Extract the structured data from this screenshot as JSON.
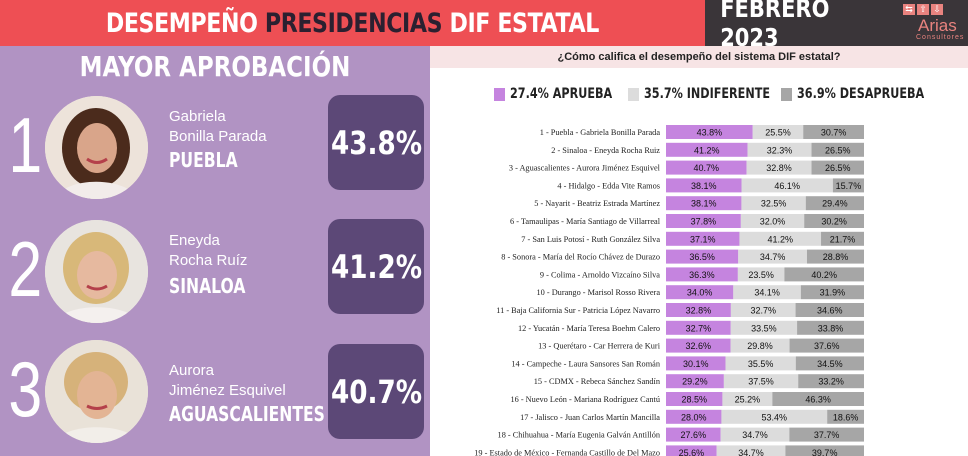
{
  "header": {
    "title_part1": "DESEMPEÑO",
    "title_part2": "PRESIDENCIAS",
    "title_part3": "DIF ESTATAL",
    "date": "FEBRERO 2023",
    "logo_name": "Arias",
    "logo_sub": "Consultores"
  },
  "colors": {
    "header_red": "#ee4f54",
    "header_dark": "#3a3539",
    "panel_purple": "#b193c3",
    "box_purple": "#5c4877",
    "aprueba": "#c584df",
    "indiferente": "#dcdcdc",
    "desaprueba": "#a6a6a6"
  },
  "left_panel": {
    "title": "MAYOR APROBACIÓN",
    "top3": [
      {
        "rank": "1",
        "name_line1": "Gabriela",
        "name_line2": "Bonilla Parada",
        "state": "PUEBLA",
        "pct": "43.8%"
      },
      {
        "rank": "2",
        "name_line1": "Eneyda",
        "name_line2": "Rocha Ruíz",
        "state": "SINALOA",
        "pct": "41.2%"
      },
      {
        "rank": "3",
        "name_line1": "Aurora",
        "name_line2": "Jiménez Esquivel",
        "state": "AGUASCALIENTES",
        "pct": "40.7%"
      }
    ]
  },
  "chart_data": {
    "type": "bar",
    "stacked": true,
    "orientation": "horizontal",
    "title": "¿Cómo califica el desempeño del sistema DIF estatal?",
    "legend": [
      "27.4% APRUEBA",
      "35.7% INDIFERENTE",
      "36.9% DESAPRUEBA"
    ],
    "legend_position": "top",
    "categories": [
      "1 - Puebla - Gabriela Bonilla Parada",
      "2 - Sinaloa - Eneyda Rocha Ruiz",
      "3 - Aguascalientes - Aurora Jiménez Esquivel",
      "4 - Hidalgo - Edda Vite Ramos",
      "5 - Nayarit - Beatriz Estrada Martínez",
      "6 - Tamaulipas - María Santiago de Villarreal",
      "7 - San Luis Potosí - Ruth González Silva",
      "8 - Sonora - María del Rocío Chávez de Durazo",
      "9 - Colima - Arnoldo Vizcaíno Silva",
      "10 - Durango - Marisol Rosso Rivera",
      "11 - Baja California Sur - Patricia López Navarro",
      "12 - Yucatán - María Teresa Boehm Calero",
      "13 - Querétaro - Car Herrera de Kuri",
      "14 - Campeche - Laura Sansores San Román",
      "15 - CDMX - Rebeca Sánchez Sandín",
      "16 - Nuevo León - Mariana Rodríguez Cantú",
      "17 - Jalisco - Juan Carlos Martín Mancilla",
      "18 - Chihuahua - María Eugenia Galván Antillón",
      "19 - Estado de México - Fernanda Castillo de Del Mazo"
    ],
    "series": [
      {
        "name": "APRUEBA",
        "values": [
          43.8,
          41.2,
          40.7,
          38.1,
          38.1,
          37.8,
          37.1,
          36.5,
          36.3,
          34.0,
          32.8,
          32.7,
          32.6,
          30.1,
          29.2,
          28.5,
          28.0,
          27.6,
          25.6
        ],
        "labels": [
          "43.8%",
          "41.2%",
          "40.7%",
          "38.1%",
          "38.1%",
          "37.8%",
          "37.1%",
          "36.5%",
          "36.3%",
          "34.0%",
          "32.8%",
          "32.7%",
          "32.6%",
          "30.1%",
          "29.2%",
          "28.5%",
          "28.0%",
          "27.6%",
          "25.6%"
        ]
      },
      {
        "name": "INDIFERENTE",
        "values": [
          25.5,
          32.3,
          32.8,
          46.1,
          32.5,
          32.0,
          41.2,
          34.7,
          23.5,
          34.1,
          32.7,
          33.5,
          29.8,
          35.5,
          37.5,
          25.2,
          53.4,
          34.7,
          34.7
        ],
        "labels": [
          "25.5%",
          "32.3%",
          "32.8%",
          "46.1%",
          "32.5%",
          "32.0%",
          "41.2%",
          "34.7%",
          "23.5%",
          "34.1%",
          "32.7%",
          "33.5%",
          "29.8%",
          "35.5%",
          "37.5%",
          "25.2%",
          "53.4%",
          "34.7%",
          "34.7%"
        ]
      },
      {
        "name": "DESAPRUEBA",
        "values": [
          30.7,
          26.5,
          26.5,
          15.7,
          29.4,
          30.2,
          21.7,
          28.8,
          40.2,
          31.9,
          34.6,
          33.8,
          37.6,
          34.5,
          33.2,
          46.3,
          18.6,
          37.7,
          39.7
        ],
        "labels": [
          "30.7%",
          "26.5%",
          "26.5%",
          "15.7%",
          "29.4%",
          "30.2%",
          "21.7%",
          "28.8%",
          "40.2%",
          "31.9%",
          "34.6%",
          "33.8%",
          "37.6%",
          "34.5%",
          "33.2%",
          "46.3%",
          "18.6%",
          "37.7%",
          "39.7%"
        ]
      }
    ]
  }
}
